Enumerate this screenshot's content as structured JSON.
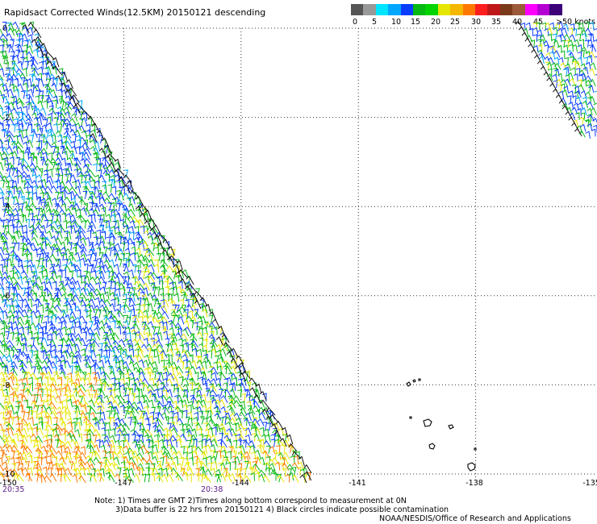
{
  "title": "Rapidsact Corrected Winds(12.5KM) 20150121 descending",
  "legend": {
    "colors": [
      "#555555",
      "#999999",
      "#00e5ff",
      "#00a6ff",
      "#0a3cff",
      "#06b814",
      "#00d400",
      "#e6e600",
      "#f5b700",
      "#ff7800",
      "#ff1e1e",
      "#c01818",
      "#7a3a1a",
      "#9b5a3a",
      "#ff00ff",
      "#b400d2",
      "#3c0078"
    ],
    "ticks": [
      "0",
      "5",
      "10",
      "15",
      "20",
      "25",
      "30",
      "35",
      "40",
      "45",
      ">50 knots"
    ]
  },
  "map": {
    "lat_labels": [
      "0",
      "-2",
      "-4",
      "-6",
      "-8",
      "-10"
    ],
    "lon_labels": [
      "-150",
      "-147",
      "-144",
      "-141",
      "-138",
      "-135"
    ],
    "time_labels": [
      "20:35",
      "20:38"
    ]
  },
  "notes": {
    "line1": "Note: 1) Times are GMT 2)Times along bottom correspond to measurement at 0N",
    "line2": "3)Data buffer is 22 hrs from 20150121 4) Black circles indicate possible contamination",
    "line3": "NOAA/NESDIS/Office of Research and Applications"
  }
}
